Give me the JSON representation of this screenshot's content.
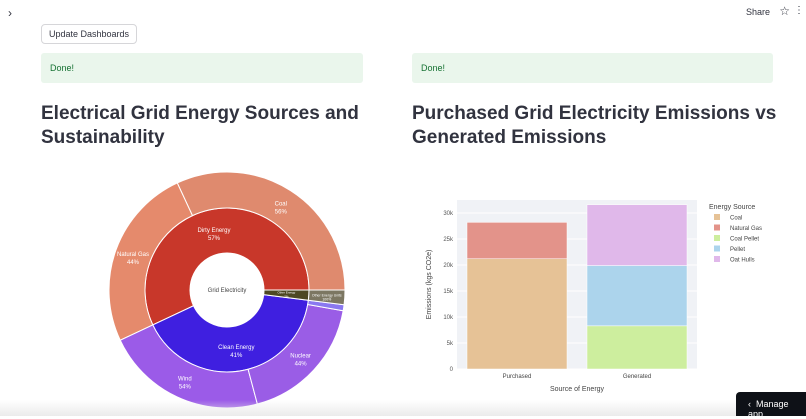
{
  "header": {
    "share_label": "Share",
    "star_icon": "star-icon",
    "menu_icon": "menu-icon",
    "sidebar_toggle_icon": "chevron-right-icon"
  },
  "update_button": "Update Dashboards",
  "status": [
    "Done!",
    "Done!"
  ],
  "left": {
    "title": "Electrical Grid Energy Sources and Sustainability"
  },
  "right": {
    "title": "Purchased Grid Electricity Emissions vs Generated Emissions"
  },
  "manage_app": "Manage app",
  "chart_data": [
    {
      "type": "sunburst",
      "center_label": "Grid Electricity",
      "inner": [
        {
          "label": "Dirty Energy",
          "pct": "57%",
          "value": 57,
          "color": "#c8372a"
        },
        {
          "label": "Clean Energy",
          "pct": "41%",
          "value": 41,
          "color": "#3f1fe0"
        },
        {
          "label": "Other Energy",
          "pct": "2%",
          "value": 2,
          "color": "#4d4823"
        }
      ],
      "outer": [
        {
          "parent": "Dirty Energy",
          "label": "Coal",
          "pct": "56%",
          "value": 56,
          "color": "#df8a6e"
        },
        {
          "parent": "Dirty Energy",
          "label": "Natural Gas",
          "pct": "44%",
          "value": 44,
          "color": "#e58a6c"
        },
        {
          "parent": "Clean Energy",
          "label": "Wind",
          "pct": "54%",
          "value": 54,
          "color": "#9b5be8"
        },
        {
          "parent": "Clean Energy",
          "label": "Nuclear",
          "pct": "44%",
          "value": 44,
          "color": "#9a5de6"
        },
        {
          "parent": "Clean Energy",
          "label": "",
          "pct": "",
          "value": 2,
          "color": "#8a78f0"
        },
        {
          "parent": "Other Energy",
          "label": "Other Energy Units",
          "pct": "100%",
          "value": 100,
          "color": "#7c7762"
        }
      ]
    },
    {
      "type": "bar",
      "stacked": true,
      "categories": [
        "Purchased",
        "Generated"
      ],
      "xlabel": "Source of Energy",
      "ylabel": "Emissions (kgs CO2e)",
      "ylim": [
        0,
        32500
      ],
      "yticks": [
        0,
        5000,
        10000,
        15000,
        20000,
        25000,
        30000
      ],
      "ytick_labels": [
        "0",
        "5k",
        "10k",
        "15k",
        "20k",
        "25k",
        "30k"
      ],
      "legend_title": "Energy Source",
      "legend_position": "right",
      "series": [
        {
          "name": "Coal",
          "values": [
            21200,
            0
          ],
          "color": "#e6c296"
        },
        {
          "name": "Natural Gas",
          "values": [
            7000,
            0
          ],
          "color": "#e3938a"
        },
        {
          "name": "Coal Pellet",
          "values": [
            0,
            8300
          ],
          "color": "#cdee9e"
        },
        {
          "name": "Pellet",
          "values": [
            0,
            11600
          ],
          "color": "#acd4ec"
        },
        {
          "name": "Oat Hulls",
          "values": [
            0,
            11700
          ],
          "color": "#e0b8ea"
        }
      ]
    }
  ]
}
